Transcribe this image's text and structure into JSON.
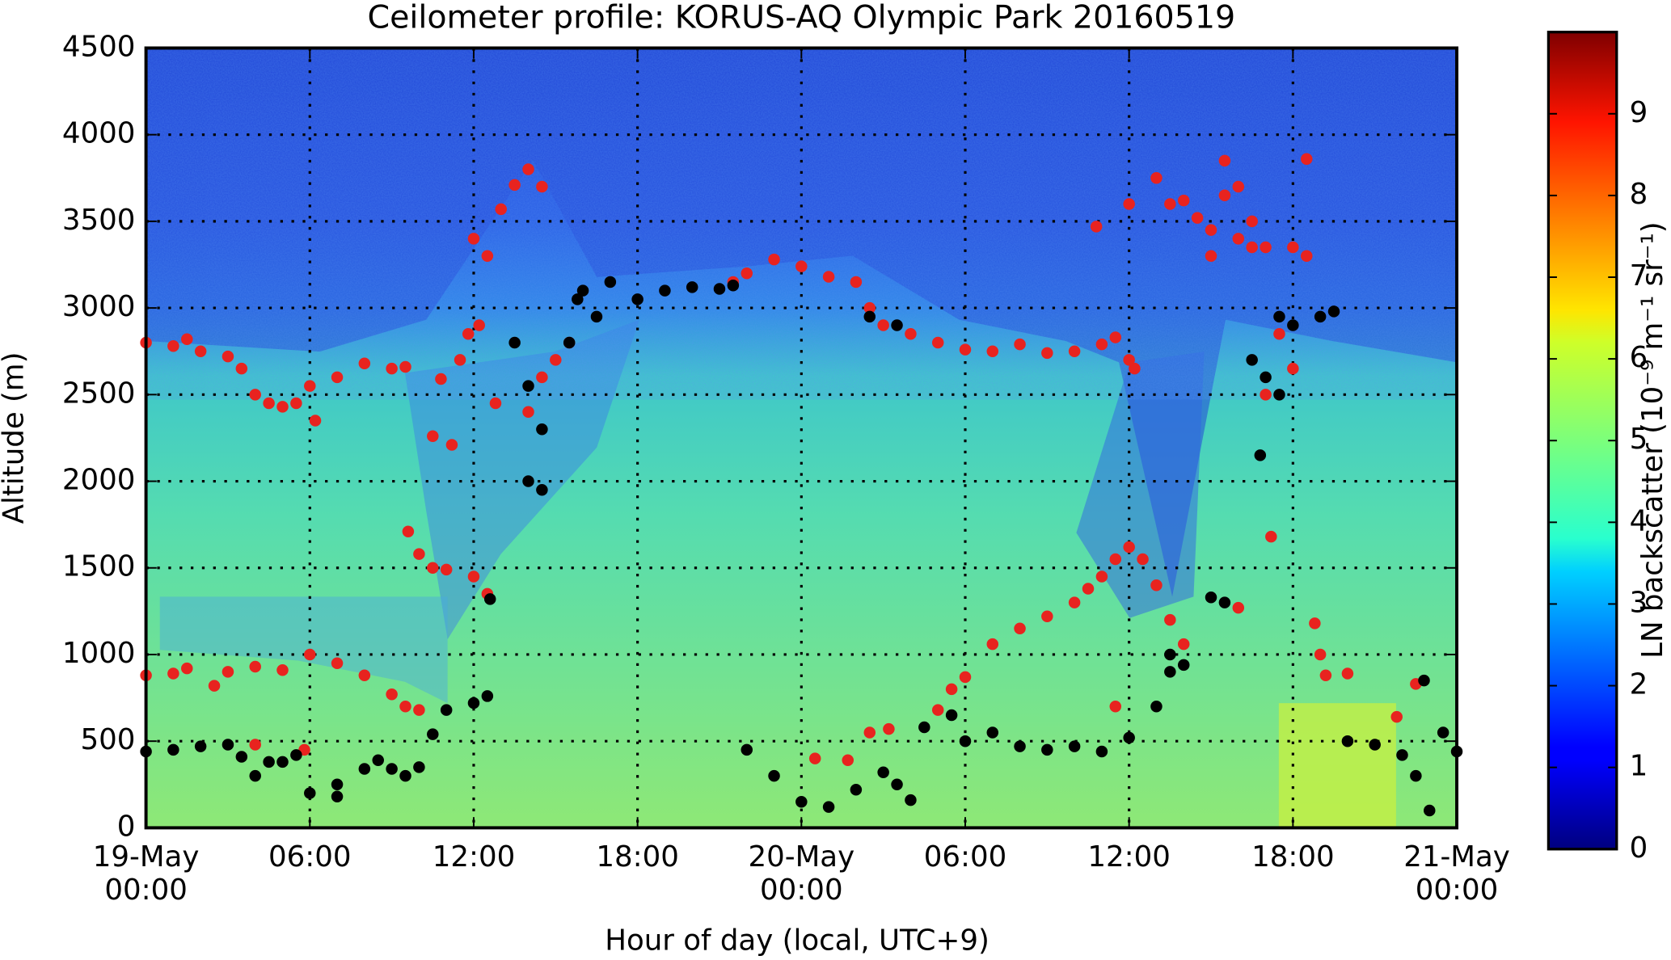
{
  "chart_data": {
    "type": "scatter",
    "title": "Ceilometer profile: KORUS-AQ Olympic Park 20160519",
    "x_label": "Hour of day (local, UTC+9)",
    "y_label": "Altitude (m)",
    "xlim": [
      0,
      48
    ],
    "ylim": [
      0,
      4500
    ],
    "xticks": [
      {
        "value": 0,
        "label": "19-May\n00:00"
      },
      {
        "value": 6,
        "label": "06:00"
      },
      {
        "value": 12,
        "label": "12:00"
      },
      {
        "value": 18,
        "label": "18:00"
      },
      {
        "value": 24,
        "label": "20-May\n00:00"
      },
      {
        "value": 30,
        "label": "06:00"
      },
      {
        "value": 36,
        "label": "12:00"
      },
      {
        "value": 42,
        "label": "18:00"
      },
      {
        "value": 48,
        "label": "21-May\n00:00"
      }
    ],
    "yticks": [
      0,
      500,
      1000,
      1500,
      2000,
      2500,
      3000,
      3500,
      4000,
      4500
    ],
    "grid": true,
    "colormap": "jet",
    "colorbar_label": "LN backscatter (10⁻⁹ m⁻¹ sr⁻¹)",
    "clim": [
      0,
      10
    ],
    "cticks": [
      0,
      1,
      2,
      3,
      4,
      5,
      6,
      7,
      8,
      9
    ],
    "series": [
      {
        "color": "#e8231f",
        "x": [
          0,
          1,
          1.5,
          2,
          3,
          3.5,
          4,
          4.5,
          5,
          5.5,
          6,
          6.2,
          7,
          8,
          9,
          9.5,
          0,
          1,
          1.5,
          2.5,
          3,
          4,
          5,
          6,
          7,
          8,
          9,
          9.5,
          10,
          4,
          5.8,
          9.6,
          10,
          10.5,
          11,
          12,
          12.5,
          10.5,
          11.2,
          10.8,
          11.5,
          11.8,
          12.2,
          12,
          12.5,
          12.8,
          13,
          13.5,
          14,
          14.5,
          14,
          14.5,
          15,
          15.5,
          21.5,
          22,
          23,
          24,
          25,
          26,
          26.5,
          27,
          28,
          29,
          30,
          31,
          32,
          33,
          34,
          35,
          35.5,
          36,
          36.2,
          34.8,
          36,
          37,
          37.5,
          38,
          38.5,
          39,
          39.5,
          39.5,
          40,
          40.5,
          41,
          42,
          42.5,
          40,
          40.5,
          39,
          42.5,
          41,
          41.5,
          42,
          41.2,
          40,
          29,
          29.5,
          30,
          31,
          32,
          33,
          34,
          34.5,
          35,
          35.5,
          36,
          36.5,
          37,
          37.5,
          38,
          35.5,
          26.5,
          25.7,
          24.5,
          27.2,
          42.8,
          43,
          43.2,
          44,
          45.8,
          46.5
        ],
        "values": [
          2800,
          2780,
          2820,
          2750,
          2720,
          2650,
          2500,
          2450,
          2430,
          2450,
          2550,
          2350,
          2600,
          2680,
          2650,
          2660,
          880,
          890,
          920,
          820,
          900,
          930,
          910,
          1000,
          950,
          880,
          770,
          700,
          680,
          480,
          450,
          1710,
          1580,
          1500,
          1490,
          1450,
          1350,
          2260,
          2210,
          2590,
          2700,
          2850,
          2900,
          3400,
          3300,
          2450,
          3570,
          3710,
          3800,
          3700,
          2400,
          2600,
          2700,
          2800,
          3150,
          3200,
          3280,
          3240,
          3180,
          3150,
          3000,
          2900,
          2850,
          2800,
          2760,
          2750,
          2790,
          2740,
          2750,
          2790,
          2830,
          2700,
          2650,
          3470,
          3600,
          3750,
          3600,
          3620,
          3520,
          3450,
          3650,
          3850,
          3700,
          3500,
          3350,
          3350,
          3860,
          3400,
          3350,
          3300,
          3300,
          2500,
          2850,
          2650,
          1680,
          1270,
          680,
          800,
          870,
          1060,
          1150,
          1220,
          1300,
          1380,
          1450,
          1550,
          1620,
          1550,
          1400,
          1200,
          1060,
          700,
          550,
          390,
          400,
          570,
          1180,
          1000,
          880,
          890,
          640,
          830
        ]
      },
      {
        "color": "#000000",
        "x": [
          0,
          1,
          2,
          3,
          3.5,
          4,
          4.5,
          5,
          5.5,
          6,
          7,
          7,
          8,
          8.5,
          9,
          9.5,
          10,
          10.5,
          11,
          12,
          12.5,
          12.6,
          13.5,
          14,
          14,
          14.5,
          14.5,
          15.5,
          15.8,
          16,
          16.5,
          17,
          18,
          19,
          20,
          21,
          21.5,
          22,
          23,
          24,
          25,
          26,
          27,
          28,
          27.5,
          28.5,
          29.5,
          30,
          31,
          32,
          33,
          34,
          35,
          36,
          37,
          37.5,
          38,
          39,
          39.5,
          40.5,
          41,
          41.5,
          40.8,
          41.5,
          42,
          43,
          43.5,
          44,
          45,
          46,
          46.5,
          47,
          47.5,
          48,
          37.5,
          26.5,
          27.5,
          46.8
        ],
        "values": [
          440,
          450,
          470,
          480,
          410,
          300,
          380,
          380,
          420,
          200,
          250,
          180,
          340,
          390,
          340,
          300,
          350,
          540,
          680,
          720,
          760,
          1320,
          2800,
          2550,
          2000,
          1950,
          2300,
          2800,
          3050,
          3100,
          2950,
          3150,
          3050,
          3100,
          3120,
          3110,
          3130,
          450,
          300,
          150,
          120,
          220,
          320,
          160,
          250,
          580,
          650,
          500,
          550,
          470,
          450,
          470,
          440,
          520,
          700,
          900,
          940,
          1330,
          1300,
          2700,
          2600,
          2500,
          2150,
          2950,
          2900,
          2950,
          2980,
          500,
          480,
          420,
          300,
          100,
          550,
          440,
          1000,
          2950,
          2900,
          850
        ]
      }
    ]
  }
}
